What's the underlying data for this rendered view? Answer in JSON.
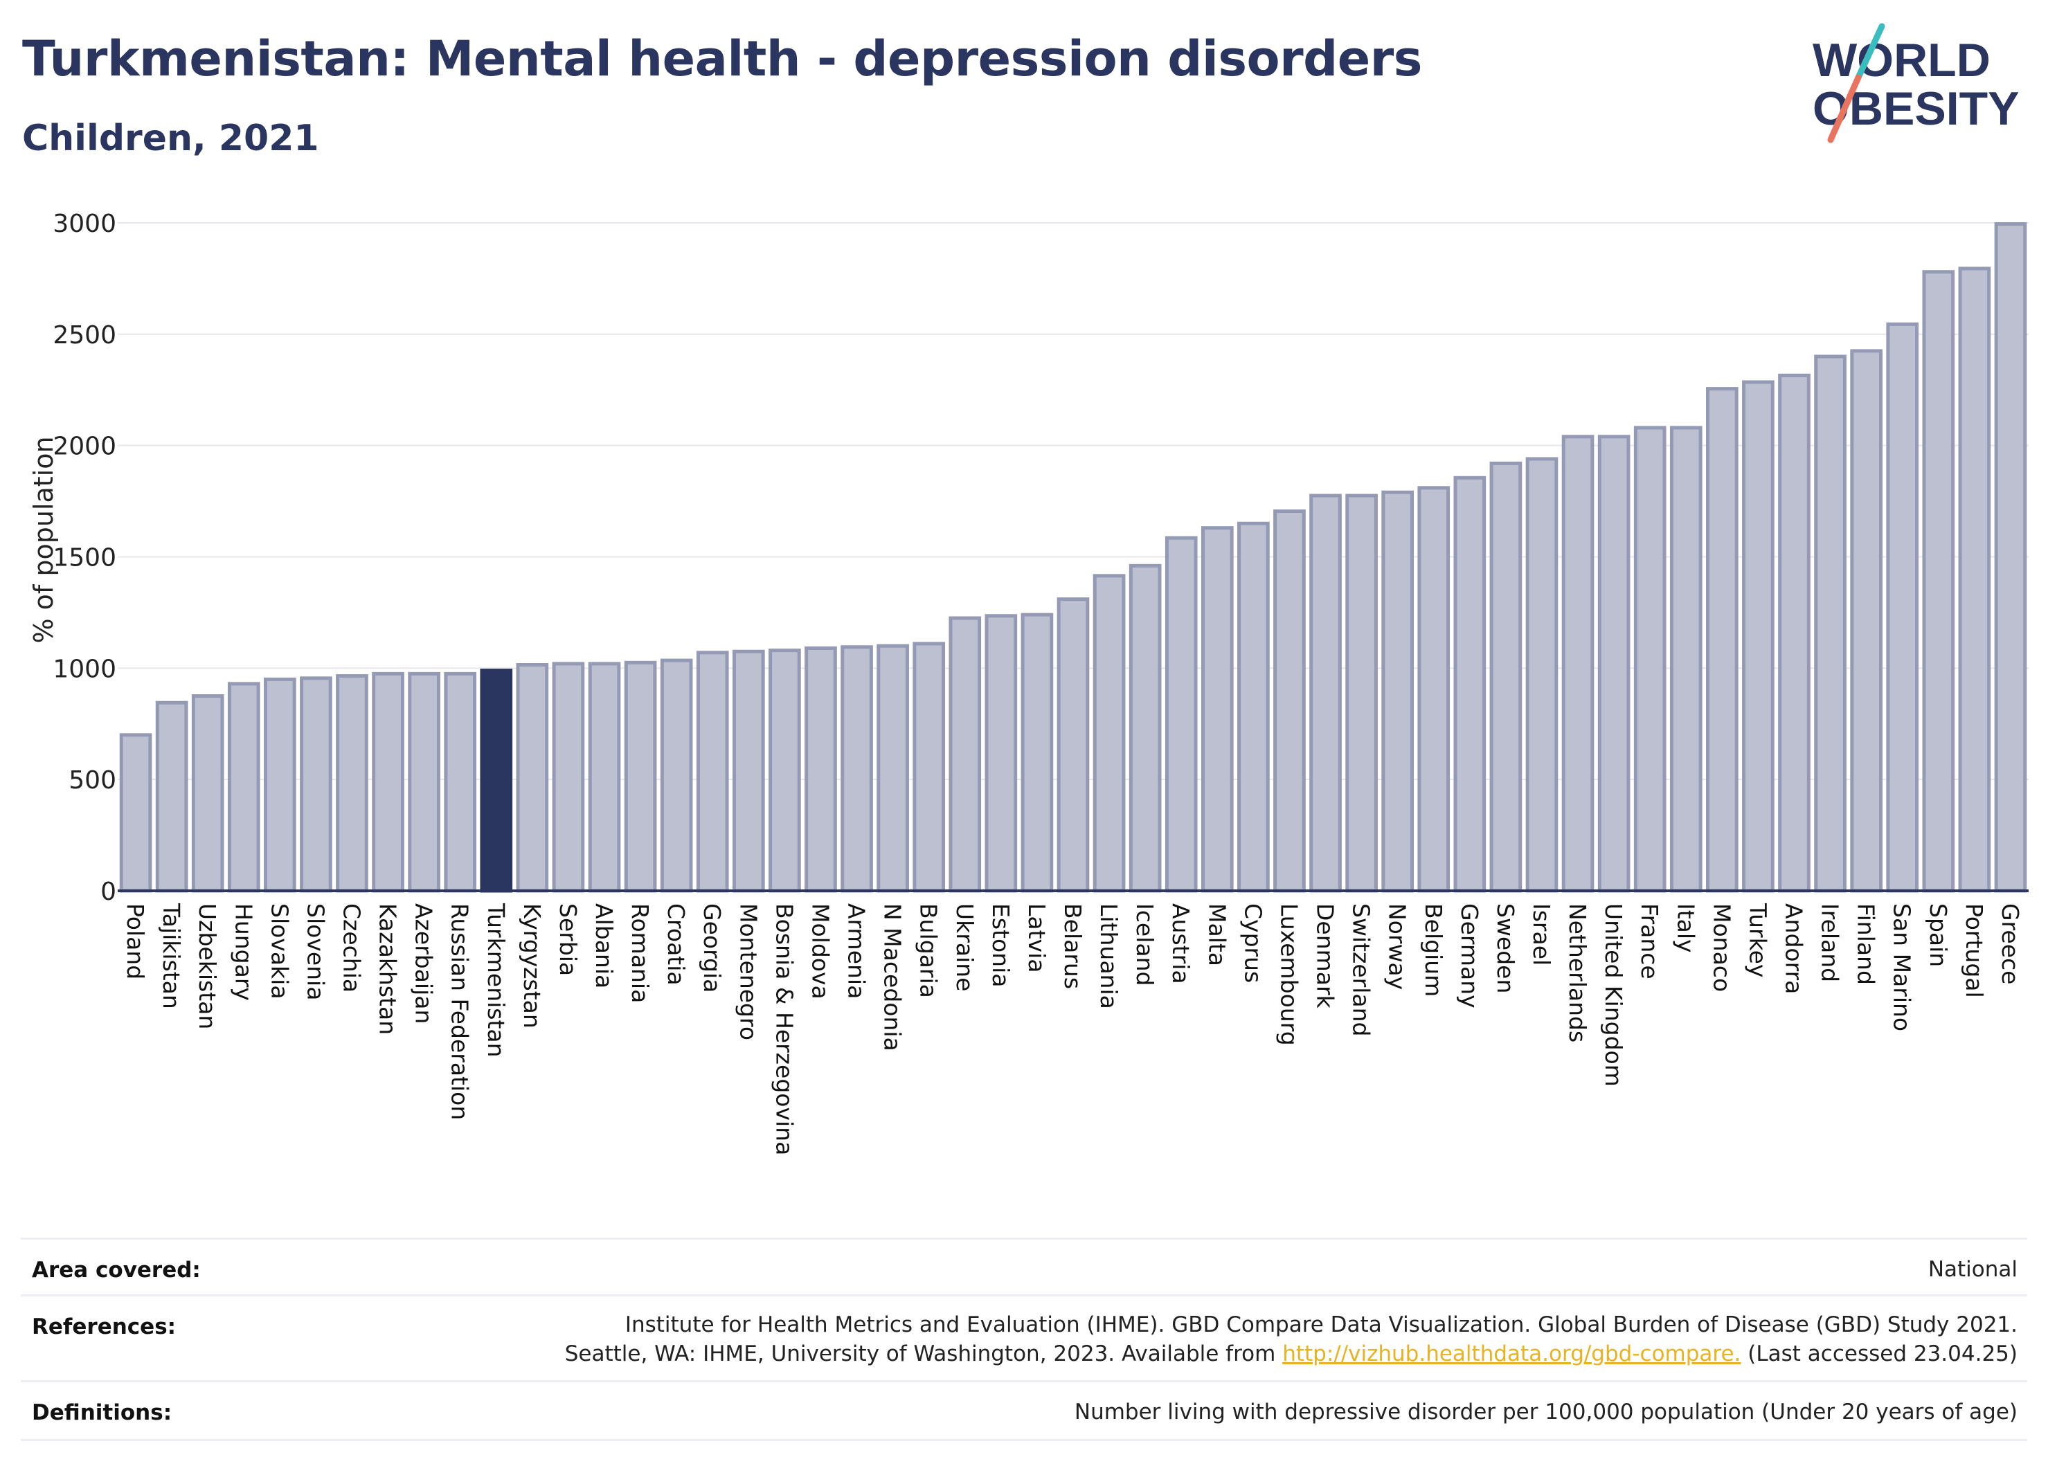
{
  "header": {
    "title": "Turkmenistan: Mental health - depression disorders",
    "subtitle": "Children, 2021"
  },
  "logo": {
    "line1": "WORLD",
    "line2": "OBESITY"
  },
  "colors": {
    "bar_fill": "#bcc0d0",
    "bar_stroke": "#9499b4",
    "highlight": "#2a3560",
    "title": "#2a3560",
    "link": "#e8b221",
    "logo_teal": "#3bbdbf",
    "logo_coral": "#e8735f"
  },
  "chart_data": {
    "type": "bar",
    "ylabel": "% of population",
    "ylim": [
      0,
      3000
    ],
    "yticks": [
      0,
      500,
      1000,
      1500,
      2000,
      2500,
      3000
    ],
    "grid": true,
    "highlight": "Turkmenistan",
    "categories": [
      "Poland",
      "Tajikistan",
      "Uzbekistan",
      "Hungary",
      "Slovakia",
      "Slovenia",
      "Czechia",
      "Kazakhstan",
      "Azerbaijan",
      "Russian Federation",
      "Turkmenistan",
      "Kyrgyzstan",
      "Serbia",
      "Albania",
      "Romania",
      "Croatia",
      "Georgia",
      "Montenegro",
      "Bosnia & Herzegovina",
      "Moldova",
      "Armenia",
      "N Macedonia",
      "Bulgaria",
      "Ukraine",
      "Estonia",
      "Latvia",
      "Belarus",
      "Lithuania",
      "Iceland",
      "Austria",
      "Malta",
      "Cyprus",
      "Luxembourg",
      "Denmark",
      "Switzerland",
      "Norway",
      "Belgium",
      "Germany",
      "Sweden",
      "Israel",
      "Netherlands",
      "United Kingdom",
      "France",
      "Italy",
      "Monaco",
      "Turkey",
      "Andorra",
      "Ireland",
      "Finland",
      "San Marino",
      "Spain",
      "Portugal",
      "Greece"
    ],
    "values": [
      700,
      845,
      875,
      930,
      950,
      955,
      965,
      975,
      975,
      975,
      990,
      1015,
      1020,
      1020,
      1025,
      1035,
      1070,
      1075,
      1080,
      1090,
      1095,
      1100,
      1110,
      1225,
      1235,
      1240,
      1310,
      1415,
      1460,
      1585,
      1630,
      1650,
      1705,
      1775,
      1775,
      1790,
      1810,
      1855,
      1920,
      1940,
      2040,
      2040,
      2080,
      2080,
      2255,
      2285,
      2315,
      2400,
      2425,
      2545,
      2780,
      2795,
      2995
    ]
  },
  "meta": {
    "area_label": "Area covered:",
    "area_value": "National",
    "references_label": "References:",
    "references_line1": "Institute for Health Metrics and Evaluation (IHME). GBD Compare Data Visualization. Global Burden of Disease (GBD) Study 2021.",
    "references_line2_pre": "Seattle, WA: IHME, University of Washington, 2023. Available from ",
    "references_link": "http://vizhub.healthdata.org/gbd-compare.",
    "references_line2_post": " (Last accessed 23.04.25)",
    "definitions_label": "Definitions:",
    "definitions_value": "Number living with depressive disorder per 100,000 population (Under 20 years of age)"
  }
}
